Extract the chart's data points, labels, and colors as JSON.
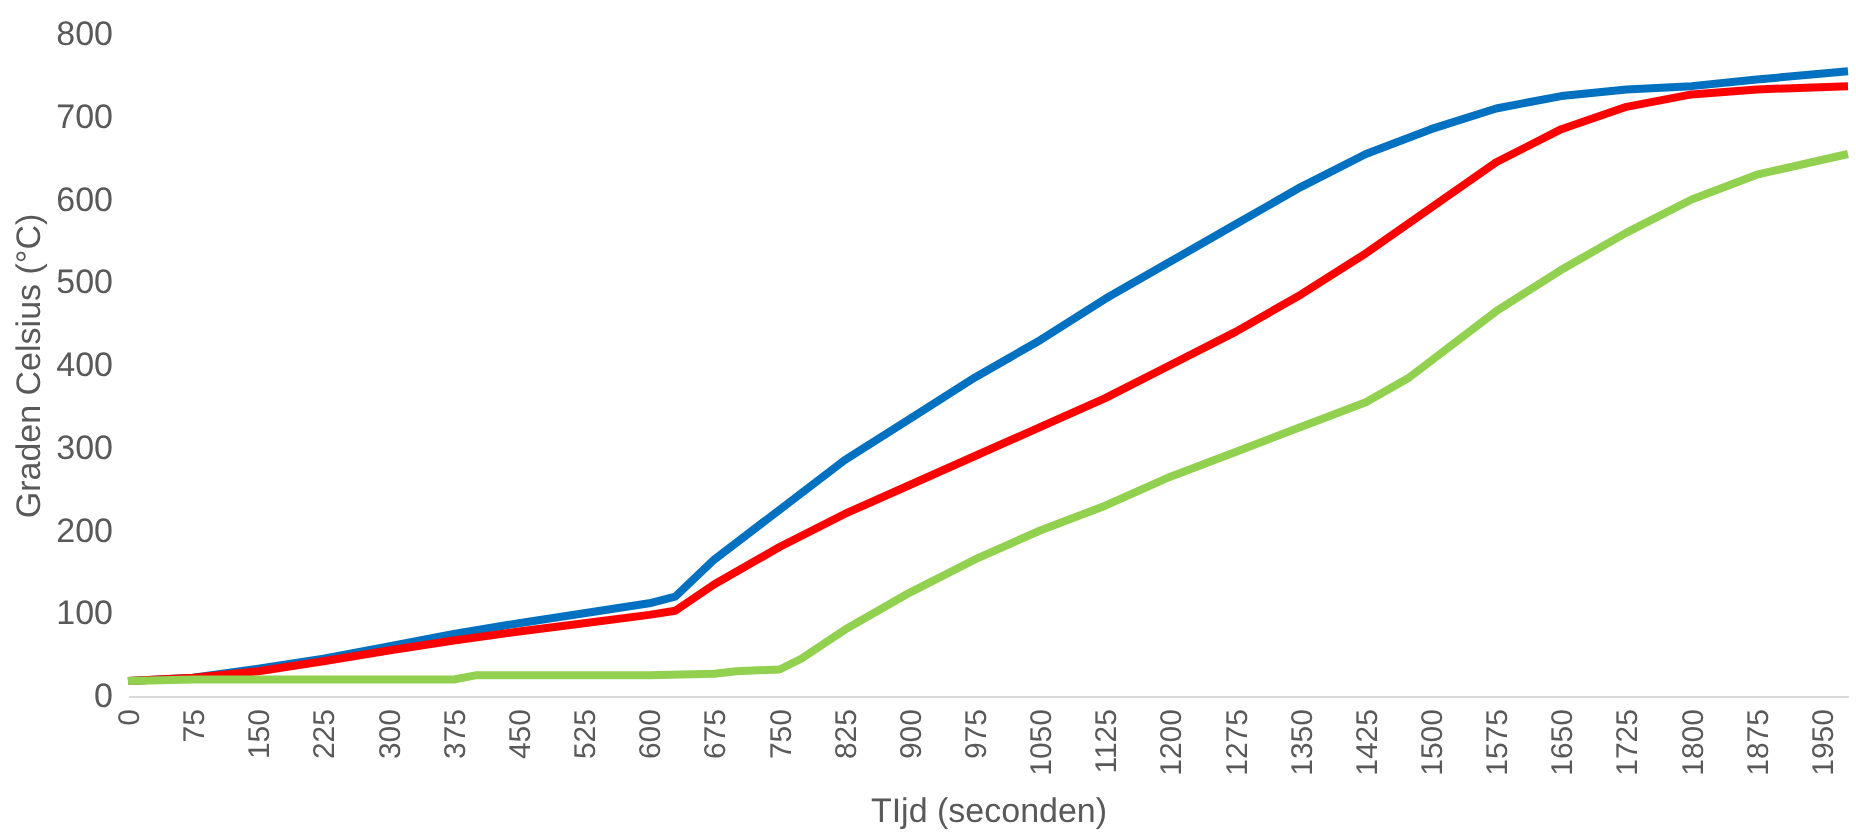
{
  "chart_data": {
    "type": "line",
    "xlabel": "TIjd (seconden)",
    "ylabel": "Graden Celsius (°C)",
    "xlim": [
      0,
      1980
    ],
    "xticks": [
      0,
      75,
      150,
      225,
      300,
      375,
      450,
      525,
      600,
      675,
      750,
      825,
      900,
      975,
      1050,
      1125,
      1200,
      1275,
      1350,
      1425,
      1500,
      1575,
      1650,
      1725,
      1800,
      1875,
      1950
    ],
    "ylim": [
      0,
      800
    ],
    "yticks": [
      0,
      100,
      200,
      300,
      400,
      500,
      600,
      700,
      800
    ],
    "grid": false,
    "legend": false,
    "marker": "none",
    "line_style": "solid",
    "series": [
      {
        "color": "#0070c0",
        "x": [
          0,
          75,
          150,
          225,
          300,
          375,
          450,
          525,
          600,
          630,
          675,
          750,
          825,
          900,
          975,
          1050,
          1125,
          1200,
          1275,
          1350,
          1425,
          1500,
          1575,
          1650,
          1725,
          1800,
          1875,
          1980
        ],
        "values": [
          18,
          22,
          33,
          45,
          60,
          75,
          88,
          100,
          112,
          120,
          165,
          225,
          285,
          335,
          385,
          430,
          480,
          525,
          570,
          615,
          655,
          685,
          710,
          725,
          733,
          737,
          745,
          755
        ]
      },
      {
        "color": "#ff0000",
        "x": [
          0,
          75,
          150,
          225,
          300,
          375,
          450,
          525,
          600,
          630,
          675,
          750,
          825,
          900,
          975,
          1050,
          1125,
          1200,
          1275,
          1350,
          1425,
          1500,
          1575,
          1650,
          1725,
          1800,
          1875,
          1980
        ],
        "values": [
          18,
          22,
          30,
          42,
          55,
          67,
          78,
          88,
          98,
          103,
          135,
          180,
          220,
          255,
          290,
          325,
          360,
          400,
          440,
          485,
          535,
          590,
          645,
          685,
          712,
          727,
          733,
          737
        ]
      },
      {
        "color": "#92d050",
        "x": [
          0,
          75,
          150,
          225,
          300,
          375,
          400,
          525,
          600,
          675,
          700,
          750,
          775,
          825,
          900,
          975,
          1050,
          1125,
          1200,
          1275,
          1350,
          1425,
          1475,
          1500,
          1575,
          1650,
          1725,
          1800,
          1875,
          1980
        ],
        "values": [
          18,
          20,
          20,
          20,
          20,
          20,
          25,
          25,
          25,
          27,
          30,
          32,
          45,
          80,
          125,
          165,
          200,
          230,
          265,
          295,
          325,
          355,
          385,
          405,
          465,
          515,
          560,
          600,
          630,
          655
        ]
      }
    ]
  }
}
